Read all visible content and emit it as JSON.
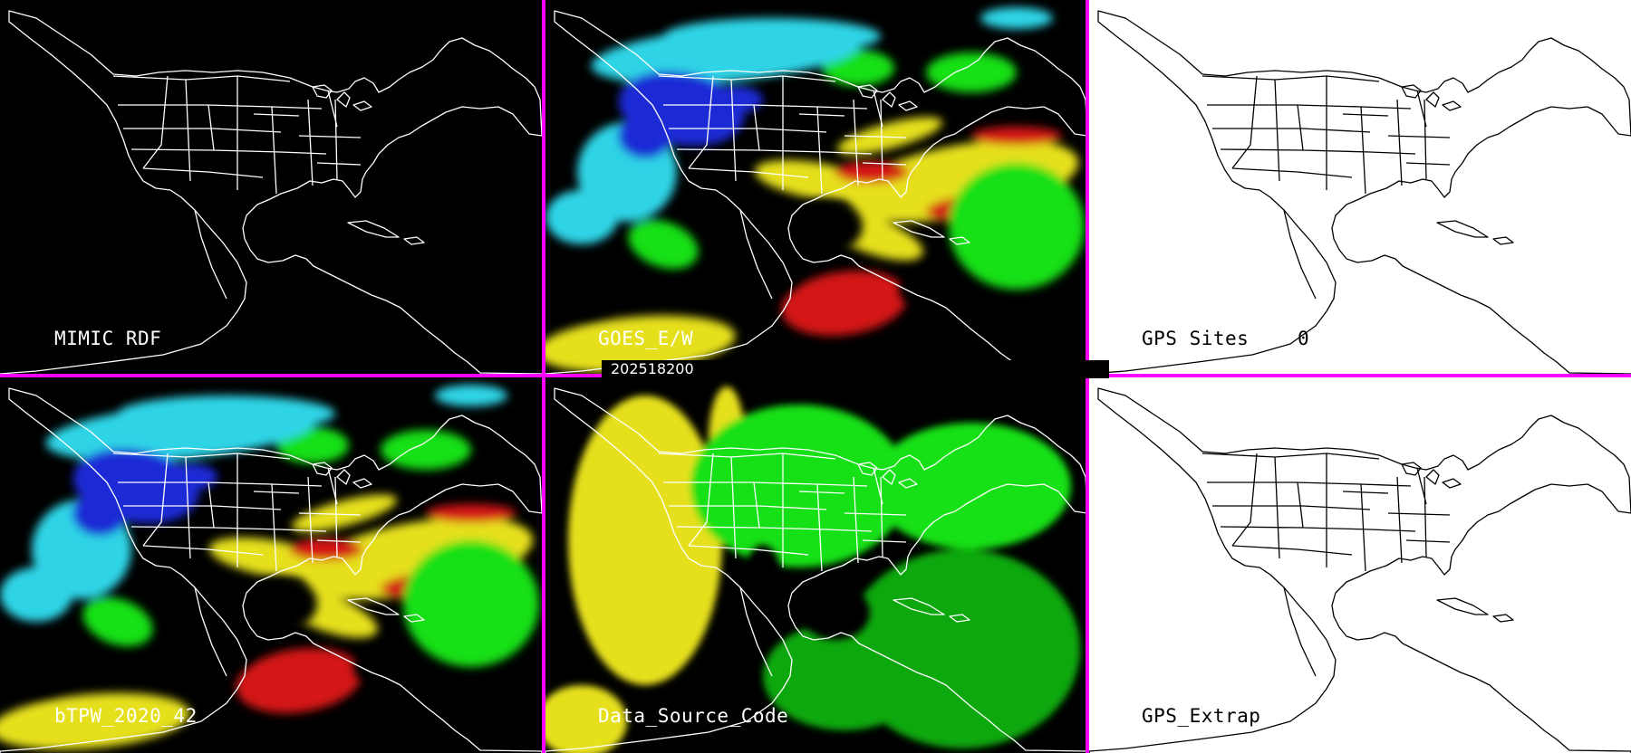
{
  "panels": [
    {
      "id": "mimic",
      "label": "MIMIC RDF",
      "theme": "dark",
      "layer": "none"
    },
    {
      "id": "goes",
      "label": "GOES_E/W",
      "theme": "dark",
      "layer": "tpw"
    },
    {
      "id": "gps_sites",
      "label": "GPS Sites",
      "value": "0",
      "theme": "light",
      "layer": "none"
    },
    {
      "id": "btpw",
      "label": "bTPW_2020_42",
      "theme": "dark",
      "layer": "tpw"
    },
    {
      "id": "source",
      "label": "Data_Source_Code",
      "theme": "dark",
      "layer": "source"
    },
    {
      "id": "gps_extrap",
      "label": "GPS_Extrap",
      "theme": "light",
      "layer": "none"
    }
  ],
  "timestamp": "202518200",
  "colors": {
    "divider": "#ff00ff",
    "cyan": "#2fd4e6",
    "blue": "#1e2bd6",
    "green": "#12e012",
    "dark_green": "#0aa80a",
    "yellow": "#e6e01a",
    "red": "#d41414",
    "outline_on_dark": "#ffffff",
    "outline_on_light": "#000000"
  }
}
